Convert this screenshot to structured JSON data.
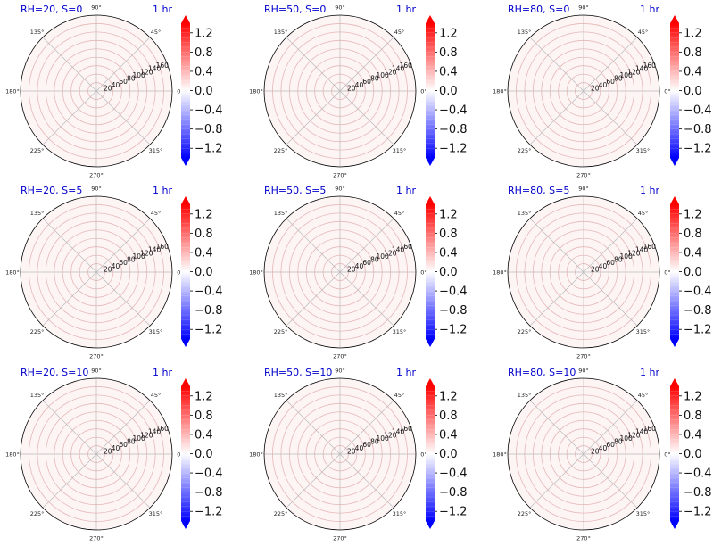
{
  "chart_data": {
    "type": "polar_contour_grid",
    "panels": [
      {
        "title_left": "RH=20, S=0",
        "title_right": "1 hr"
      },
      {
        "title_left": "RH=50, S=0",
        "title_right": "1 hr"
      },
      {
        "title_left": "RH=80, S=0",
        "title_right": "1 hr"
      },
      {
        "title_left": "RH=20, S=5",
        "title_right": "1 hr"
      },
      {
        "title_left": "RH=50, S=5",
        "title_right": "1 hr"
      },
      {
        "title_left": "RH=80, S=5",
        "title_right": "1 hr"
      },
      {
        "title_left": "RH=20, S=10",
        "title_right": "1 hr"
      },
      {
        "title_left": "RH=50, S=10",
        "title_right": "1 hr"
      },
      {
        "title_left": "RH=80, S=10",
        "title_right": "1 hr"
      }
    ],
    "angle_ticks": [
      "0°",
      "45°",
      "90°",
      "135°",
      "180°",
      "225°",
      "270°",
      "315°"
    ],
    "radial_ticks": [
      "20",
      "40",
      "60",
      "80",
      "100",
      "120",
      "140",
      "160"
    ],
    "rlim": [
      0,
      180
    ],
    "colorbar": {
      "colormap": "bwr",
      "range": [
        -1.4,
        1.4
      ],
      "ticks": [
        "1.2",
        "0.8",
        "0.4",
        "0.0",
        "−0.4",
        "−0.8",
        "−1.2"
      ],
      "tick_values": [
        1.2,
        0.8,
        0.4,
        0.0,
        -0.4,
        -0.8,
        -1.2
      ],
      "extend": "both"
    },
    "field_values": "near zero everywhere (faint pink tint)"
  },
  "colors": {
    "title": "#0000cc",
    "positive": "#ff0000",
    "negative": "#0000ff",
    "neutral": "#ffffff",
    "field_tint": "#fdf4f4",
    "rings": "#e6b8b8",
    "spokes": "#b9b9b9"
  }
}
